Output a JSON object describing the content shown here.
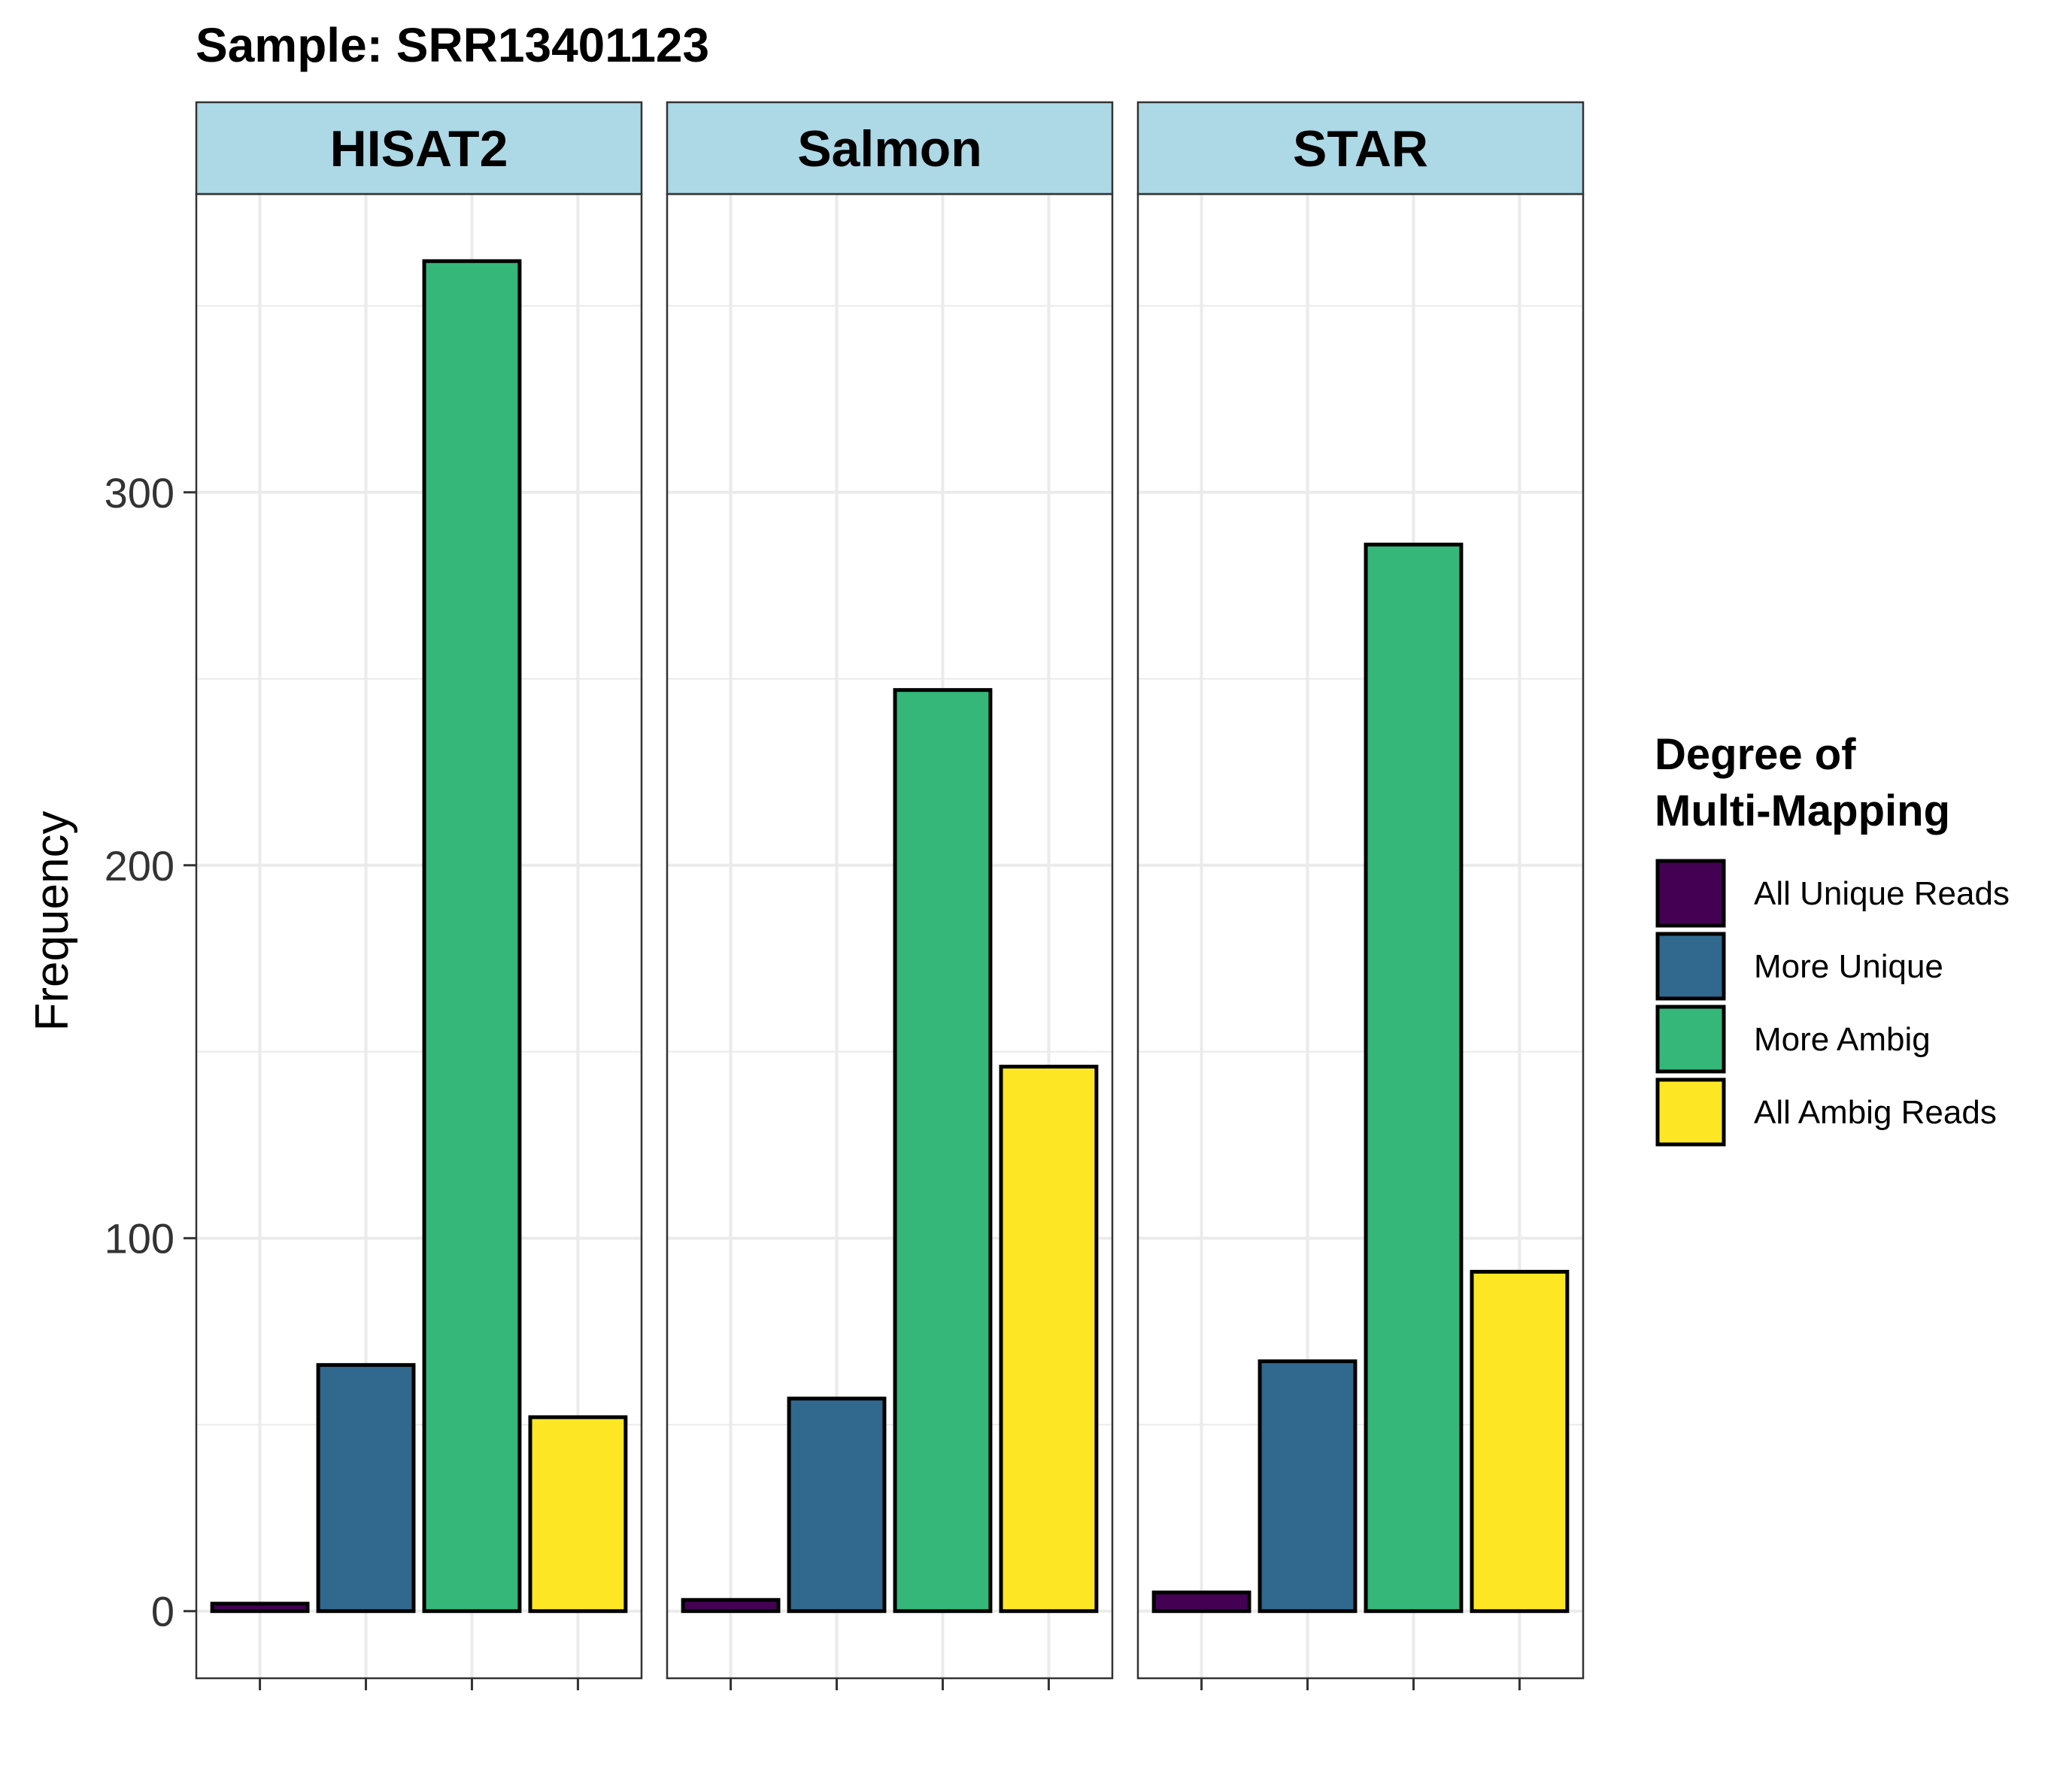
{
  "chart_data": {
    "type": "bar",
    "title": "Sample: SRR13401123",
    "ylabel": "Frequency",
    "xlabel": "",
    "ylim": [
      -18,
      380
    ],
    "yticks": [
      0,
      100,
      200,
      300
    ],
    "facets": [
      "HISAT2",
      "Salmon",
      "STAR"
    ],
    "categories": [
      "All Unique Reads",
      "More Unique",
      "More Ambig",
      "All Ambig Reads"
    ],
    "colors": [
      "#440154",
      "#31688E",
      "#35B779",
      "#FDE725"
    ],
    "series": [
      {
        "name": "HISAT2",
        "values": [
          2,
          66,
          362,
          52
        ]
      },
      {
        "name": "Salmon",
        "values": [
          3,
          57,
          247,
          146
        ]
      },
      {
        "name": "STAR",
        "values": [
          5,
          67,
          286,
          91
        ]
      }
    ],
    "legend": {
      "title_line1": "Degree of",
      "title_line2": "Multi-Mapping",
      "entries": [
        "All Unique Reads",
        "More Unique",
        "More Ambig",
        "All Ambig Reads"
      ],
      "position": "right"
    },
    "strip_color": "#ADD8E6",
    "grid": true
  }
}
